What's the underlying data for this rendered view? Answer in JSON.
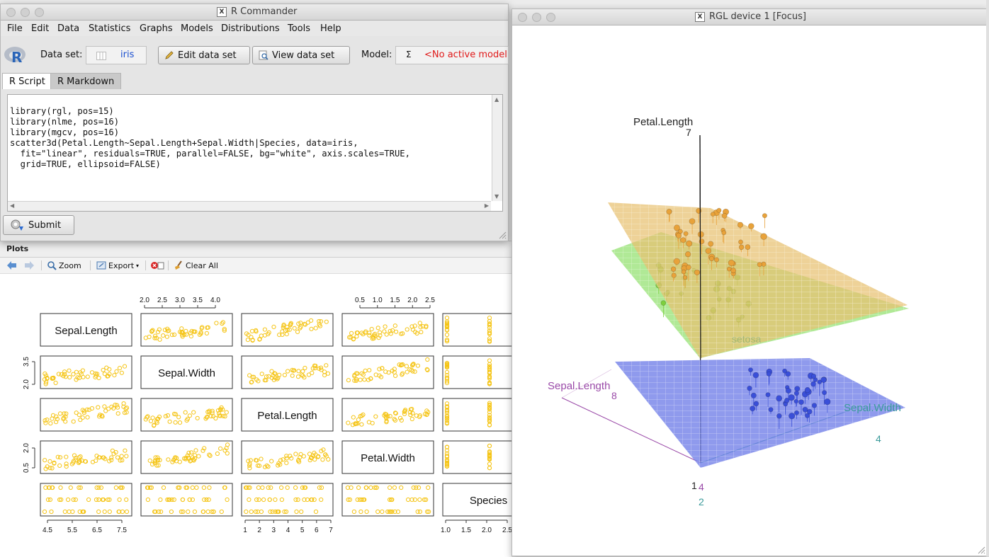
{
  "rcmdr": {
    "title": "R Commander",
    "menu": [
      "File",
      "Edit",
      "Data",
      "Statistics",
      "Graphs",
      "Models",
      "Distributions",
      "Tools",
      "Help"
    ],
    "dataset_label": "Data set:",
    "dataset_value": "iris",
    "edit_label": "Edit data set",
    "view_label": "View data set",
    "model_label": "Model:",
    "model_sigma": "Σ",
    "model_value": "<No active model>",
    "tabs": [
      "R Script",
      "R Markdown"
    ],
    "script": "library(rgl, pos=15)\nlibrary(nlme, pos=16)\nlibrary(mgcv, pos=16)\nscatter3d(Petal.Length~Sepal.Length+Sepal.Width|Species, data=iris,\n  fit=\"linear\", residuals=TRUE, parallel=FALSE, bg=\"white\", axis.scales=TRUE,\n  grid=TRUE, ellipsoid=FALSE)",
    "submit_label": "Submit"
  },
  "plots": {
    "tab": "Plots",
    "zoom": "Zoom",
    "export": "Export",
    "clear_all": "Clear All"
  },
  "pairs": {
    "diag_labels": [
      "Sepal.Length",
      "Sepal.Width",
      "Petal.Length",
      "Petal.Width",
      "Species"
    ],
    "top_ticks": {
      "col2": [
        "2.0",
        "2.5",
        "3.0",
        "3.5",
        "4.0"
      ],
      "col4": [
        "0.5",
        "1.0",
        "1.5",
        "2.0",
        "2.5"
      ]
    },
    "bottom_ticks": {
      "col1": [
        "4.5",
        "5.5",
        "6.5",
        "7.5"
      ],
      "col3": [
        "1",
        "2",
        "3",
        "4",
        "5",
        "6",
        "7"
      ],
      "col5": [
        "1.0",
        "1.5",
        "2.0",
        "2.5"
      ]
    },
    "left_ticks": {
      "row2": [
        "2.0",
        "3.5"
      ],
      "row4": [
        "0.5",
        "2.0"
      ]
    },
    "point_color": "#f5c518"
  },
  "rgl": {
    "title": "RGL device 1 [Focus]",
    "axis_petal_label": "Petal.Length",
    "axis_petal_max": "7",
    "axis_sepal_len_label": "Sepal.Length",
    "axis_sepal_len_max": "8",
    "axis_sepal_wid_label": "Sepal.Width",
    "axis_sepal_wid_max": "4",
    "origin_petal": "1",
    "origin_sepal_len": "4",
    "origin_sepal_wid": "2",
    "group_label": "setosa",
    "colors": {
      "versicolor": "#e8a23a",
      "setosa": "#7dcf3e",
      "virginica": "#3a4fd8",
      "sepal_len_axis": "#9a4aa8",
      "sepal_wid_axis": "#3a9a9a"
    }
  }
}
